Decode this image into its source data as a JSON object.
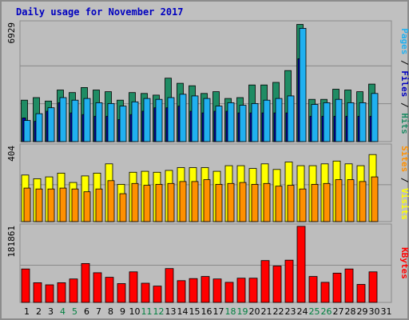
{
  "chart_data": {
    "type": "bar",
    "title": "Daily usage for November 2017",
    "categories": [
      "1",
      "2",
      "3",
      "4",
      "5",
      "6",
      "7",
      "8",
      "9",
      "10",
      "11",
      "12",
      "13",
      "14",
      "15",
      "16",
      "17",
      "18",
      "19",
      "20",
      "21",
      "22",
      "23",
      "24",
      "25",
      "26",
      "27",
      "28",
      "29",
      "30",
      "31"
    ],
    "weekend_categories": [
      "4",
      "5",
      "11",
      "12",
      "18",
      "19",
      "25",
      "26"
    ],
    "colors": {
      "title": "#0000c0",
      "hits": "#1f8c64",
      "files": "#0000c0",
      "pages": "#20b0f0",
      "visits": "#ffff00",
      "sites": "#ff9000",
      "kbytes": "#ff0000",
      "weekday_tick": "#000000",
      "weekend_tick": "#008040",
      "background": "#c0c0c0",
      "plot_background": "#bdbdbd"
    },
    "panels": [
      {
        "id": "hits",
        "ymax_label": "6929",
        "ylim": [
          0,
          6929
        ],
        "side_label": [
          {
            "text": "Pages",
            "color": "#20b0f0"
          },
          {
            "text": " / ",
            "color": "#000000"
          },
          {
            "text": "Files",
            "color": "#0000c0"
          },
          {
            "text": " / ",
            "color": "#000000"
          },
          {
            "text": "Hits",
            "color": "#1f8c64"
          }
        ],
        "series": [
          {
            "name": "Hits",
            "values": [
              2450,
              2600,
              2400,
              3050,
              2900,
              3200,
              3050,
              2950,
              2450,
              2900,
              2850,
              2750,
              3750,
              3450,
              3300,
              2850,
              2950,
              2550,
              2600,
              3350,
              3350,
              3500,
              4200,
              6929,
              2500,
              2500,
              3100,
              3050,
              2950,
              3400,
              0
            ]
          },
          {
            "name": "Files",
            "values": [
              1400,
              1200,
              1800,
              2300,
              1700,
              1600,
              1500,
              1500,
              1300,
              1600,
              1800,
              2000,
              2000,
              2100,
              1800,
              1700,
              1800,
              1800,
              1700,
              1700,
              1700,
              1700,
              1700,
              4900,
              1500,
              1500,
              1500,
              1500,
              1500,
              1500,
              0
            ]
          },
          {
            "name": "Pages",
            "values": [
              1250,
              1650,
              2000,
              2600,
              2450,
              2550,
              2300,
              2250,
              2100,
              2350,
              2550,
              2500,
              2600,
              2800,
              2700,
              2550,
              2100,
              2300,
              2150,
              2250,
              2450,
              2550,
              2700,
              6700,
              2200,
              2300,
              2500,
              2300,
              2300,
              2850,
              0
            ]
          }
        ]
      },
      {
        "id": "visits",
        "ymax_label": "404",
        "ylim": [
          0,
          404
        ],
        "side_label": [
          {
            "text": "Sites",
            "color": "#ff9000"
          },
          {
            "text": " / ",
            "color": "#000000"
          },
          {
            "text": "Visits",
            "color": "#ffff00"
          }
        ],
        "series": [
          {
            "name": "Visits",
            "values": [
              250,
              230,
              240,
              260,
              210,
              245,
              260,
              310,
              200,
              265,
              270,
              265,
              275,
              290,
              290,
              290,
              270,
              300,
              300,
              285,
              310,
              280,
              320,
              300,
              300,
              310,
              325,
              310,
              300,
              360,
              0
            ]
          },
          {
            "name": "Sites",
            "values": [
              180,
              175,
              175,
              180,
              175,
              160,
              175,
              220,
              150,
              205,
              195,
              200,
              205,
              215,
              215,
              225,
              200,
              205,
              210,
              200,
              205,
              190,
              195,
              175,
              200,
              205,
              225,
              225,
              215,
              240,
              0
            ]
          }
        ]
      },
      {
        "id": "kbytes",
        "ymax_label": "181861",
        "ylim": [
          0,
          181861
        ],
        "side_label": [
          {
            "text": "KBytes",
            "color": "#ff0000"
          }
        ],
        "series": [
          {
            "name": "KBytes",
            "values": [
              80000,
              47000,
              42000,
              47000,
              56000,
              93000,
              71000,
              60000,
              45000,
              73000,
              46000,
              39000,
              81000,
              52000,
              57000,
              62000,
              56000,
              48000,
              58000,
              58000,
              100000,
              87000,
              101000,
              181861,
              62000,
              48000,
              70000,
              80000,
              43000,
              73000,
              0
            ]
          }
        ]
      }
    ]
  }
}
